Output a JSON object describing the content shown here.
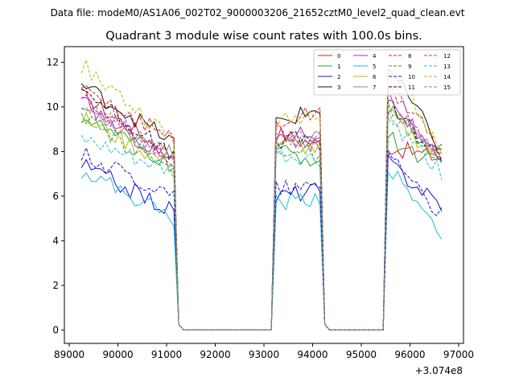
{
  "header": {
    "data_file": "Data file: modeM0/AS1A06_002T02_9000003206_21652cztM0_level2_quad_clean.evt"
  },
  "chart_data": {
    "type": "line",
    "title": "Quadrant 3 module wise count rates with 100.0s bins.",
    "xlabel": "",
    "ylabel": "",
    "x_offset_label": "+3.074e8",
    "xlim": [
      88900,
      97100
    ],
    "ylim": [
      -0.6,
      12.7
    ],
    "x_ticks": [
      89000,
      90000,
      91000,
      92000,
      93000,
      94000,
      95000,
      96000,
      97000
    ],
    "y_ticks": [
      0,
      2,
      4,
      6,
      8,
      10,
      12
    ],
    "legend_position": "top-right",
    "segments": [
      {
        "start": 89250,
        "end": 91150
      },
      {
        "start": 93250,
        "end": 94150
      },
      {
        "start": 95550,
        "end": 96650
      }
    ],
    "series": [
      {
        "name": "0",
        "color": "#e31a1c",
        "dash": false,
        "levels": [
          10.5,
          7.8,
          8.8,
          8.3,
          8.2,
          7.7
        ]
      },
      {
        "name": "1",
        "color": "#2ca02c",
        "dash": false,
        "levels": [
          9.6,
          7.3,
          8.0,
          7.6,
          8.6,
          7.3
        ]
      },
      {
        "name": "2",
        "color": "#1111dd",
        "dash": false,
        "levels": [
          7.4,
          5.3,
          6.0,
          6.3,
          7.5,
          5.6
        ]
      },
      {
        "name": "3",
        "color": "#111111",
        "dash": false,
        "levels": [
          11.0,
          8.4,
          9.3,
          9.9,
          11.8,
          8.1
        ]
      },
      {
        "name": "4",
        "color": "#c020c0",
        "dash": false,
        "levels": [
          10.2,
          7.5,
          8.7,
          8.9,
          10.6,
          7.3
        ]
      },
      {
        "name": "5",
        "color": "#20c0c0",
        "dash": false,
        "levels": [
          7.2,
          5.0,
          5.7,
          6.0,
          7.3,
          4.3
        ]
      },
      {
        "name": "6",
        "color": "#b8b800",
        "dash": false,
        "levels": [
          9.5,
          7.3,
          8.4,
          8.1,
          9.7,
          7.6
        ]
      },
      {
        "name": "7",
        "color": "#888888",
        "dash": false,
        "levels": [
          10.0,
          7.8,
          8.5,
          8.6,
          10.0,
          8.0
        ]
      },
      {
        "name": "8",
        "color": "#e31a1c",
        "dash": true,
        "levels": [
          10.7,
          8.6,
          9.2,
          9.8,
          11.0,
          8.1
        ]
      },
      {
        "name": "9",
        "color": "#2ca02c",
        "dash": true,
        "levels": [
          9.4,
          7.2,
          8.2,
          7.8,
          9.9,
          7.4
        ]
      },
      {
        "name": "10",
        "color": "#1111dd",
        "dash": true,
        "levels": [
          7.9,
          6.0,
          6.4,
          6.4,
          8.2,
          5.1
        ]
      },
      {
        "name": "11",
        "color": "#111111",
        "dash": true,
        "levels": [
          10.9,
          7.7,
          8.5,
          8.6,
          10.1,
          7.7
        ]
      },
      {
        "name": "12",
        "color": "#c020c0",
        "dash": true,
        "levels": [
          10.3,
          7.7,
          8.8,
          8.2,
          11.0,
          7.6
        ]
      },
      {
        "name": "13",
        "color": "#20c0c0",
        "dash": true,
        "levels": [
          8.5,
          7.0,
          7.8,
          7.6,
          9.4,
          7.1
        ]
      },
      {
        "name": "14",
        "color": "#b8b800",
        "dash": true,
        "levels": [
          11.9,
          8.5,
          9.2,
          9.9,
          12.0,
          8.0
        ]
      },
      {
        "name": "15",
        "color": "#888888",
        "dash": true,
        "levels": [
          10.1,
          7.7,
          8.6,
          8.5,
          9.8,
          8.1
        ]
      }
    ]
  }
}
